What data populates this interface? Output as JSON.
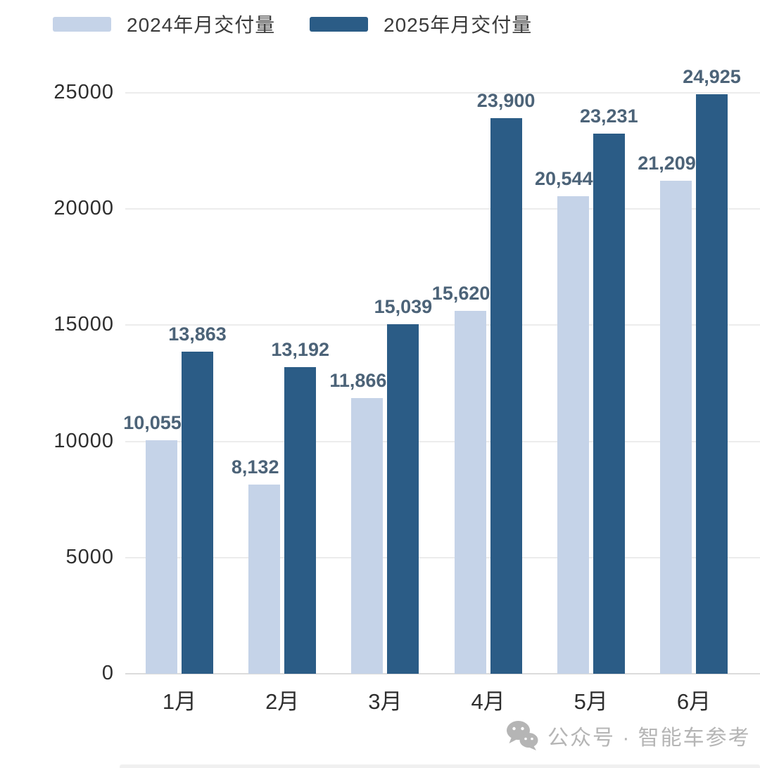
{
  "legend": {
    "items": [
      {
        "label": "2024年月交付量",
        "color": "#C5D3E8"
      },
      {
        "label": "2025年月交付量",
        "color": "#2B5C86"
      }
    ]
  },
  "chart_data": {
    "type": "bar",
    "categories": [
      "1月",
      "2月",
      "3月",
      "4月",
      "5月",
      "6月"
    ],
    "series": [
      {
        "name": "2024年月交付量",
        "color": "#C5D3E8",
        "values": [
          10055,
          8132,
          11866,
          15620,
          20544,
          21209
        ],
        "value_labels": [
          "10,055",
          "8,132",
          "11,866",
          "15,620",
          "20,544",
          "21,209"
        ]
      },
      {
        "name": "2025年月交付量",
        "color": "#2B5C86",
        "values": [
          13863,
          13192,
          15039,
          23900,
          23231,
          24925
        ],
        "value_labels": [
          "13,863",
          "13,192",
          "15,039",
          "23,900",
          "23,231",
          "24,925"
        ]
      }
    ],
    "title": "",
    "xlabel": "",
    "ylabel": "",
    "ylim": [
      0,
      25000
    ],
    "yticks": [
      0,
      5000,
      10000,
      15000,
      20000,
      25000
    ],
    "ytick_labels": [
      "0",
      "5000",
      "10000",
      "15000",
      "20000",
      "25000"
    ],
    "grid": true,
    "legend_position": "top"
  },
  "watermark": {
    "icon": "wechat-icon",
    "text": "公众号 · 智能车参考"
  }
}
